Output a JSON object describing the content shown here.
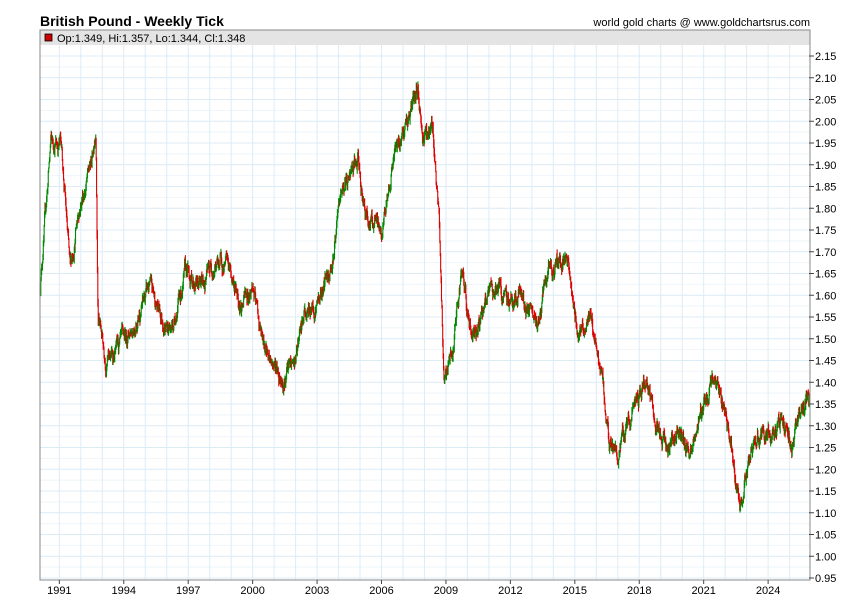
{
  "header": {
    "title": "British Pound - Weekly Tick",
    "source": "world gold charts @ www.goldchartsrus.com"
  },
  "legend": {
    "text": "Op:1.349, Hi:1.357, Lo:1.344, Cl:1.348",
    "swatch_color": "#cc0000"
  },
  "colors": {
    "up": "#008800",
    "down": "#dd0000",
    "grid": "#dcecf7",
    "legend_bg": "#e4e4e4"
  },
  "chart_data": {
    "type": "candlestick",
    "title": "British Pound - Weekly Tick",
    "xlabel": "",
    "ylabel": "",
    "xlim": [
      1990.1,
      2025.95
    ],
    "ylim": [
      0.95,
      2.17
    ],
    "yticks": [
      "0.95",
      "1.00",
      "1.05",
      "1.10",
      "1.15",
      "1.20",
      "1.25",
      "1.30",
      "1.35",
      "1.40",
      "1.45",
      "1.50",
      "1.55",
      "1.60",
      "1.65",
      "1.70",
      "1.75",
      "1.80",
      "1.85",
      "1.90",
      "1.95",
      "2.00",
      "2.05",
      "2.10",
      "2.15"
    ],
    "xticks": [
      "1991",
      "1994",
      "1997",
      "2000",
      "2003",
      "2006",
      "2009",
      "2012",
      "2015",
      "2018",
      "2021",
      "2024"
    ],
    "grid": true,
    "approx_close_path": [
      [
        1990.1,
        1.62
      ],
      [
        1990.6,
        1.95
      ],
      [
        1991.1,
        1.95
      ],
      [
        1991.5,
        1.65
      ],
      [
        1991.9,
        1.8
      ],
      [
        1992.5,
        1.9
      ],
      [
        1992.7,
        2.0
      ],
      [
        1992.8,
        1.55
      ],
      [
        1993.2,
        1.45
      ],
      [
        1993.9,
        1.48
      ],
      [
        1994.6,
        1.55
      ],
      [
        1995.2,
        1.62
      ],
      [
        1995.75,
        1.55
      ],
      [
        1996.2,
        1.52
      ],
      [
        1996.9,
        1.65
      ],
      [
        1997.6,
        1.62
      ],
      [
        1998.1,
        1.67
      ],
      [
        1998.8,
        1.67
      ],
      [
        1999.5,
        1.58
      ],
      [
        2000.0,
        1.62
      ],
      [
        2000.5,
        1.48
      ],
      [
        2000.9,
        1.45
      ],
      [
        2001.4,
        1.41
      ],
      [
        2002.0,
        1.45
      ],
      [
        2002.4,
        1.55
      ],
      [
        2003.0,
        1.58
      ],
      [
        2003.7,
        1.68
      ],
      [
        2004.2,
        1.85
      ],
      [
        2004.9,
        1.9
      ],
      [
        2005.3,
        1.78
      ],
      [
        2006.0,
        1.74
      ],
      [
        2006.5,
        1.9
      ],
      [
        2007.0,
        1.98
      ],
      [
        2007.7,
        2.07
      ],
      [
        2007.9,
        1.97
      ],
      [
        2008.4,
        1.98
      ],
      [
        2008.7,
        1.75
      ],
      [
        2008.9,
        1.42
      ],
      [
        2009.3,
        1.45
      ],
      [
        2009.7,
        1.65
      ],
      [
        2010.2,
        1.5
      ],
      [
        2010.7,
        1.57
      ],
      [
        2011.4,
        1.62
      ],
      [
        2011.8,
        1.58
      ],
      [
        2012.5,
        1.6
      ],
      [
        2013.2,
        1.52
      ],
      [
        2013.8,
        1.65
      ],
      [
        2014.6,
        1.7
      ],
      [
        2015.1,
        1.52
      ],
      [
        2015.7,
        1.55
      ],
      [
        2016.3,
        1.4
      ],
      [
        2016.6,
        1.25
      ],
      [
        2017.1,
        1.24
      ],
      [
        2017.6,
        1.32
      ],
      [
        2018.3,
        1.4
      ],
      [
        2018.8,
        1.29
      ],
      [
        2019.5,
        1.25
      ],
      [
        2019.8,
        1.3
      ],
      [
        2020.3,
        1.23
      ],
      [
        2020.7,
        1.3
      ],
      [
        2021.3,
        1.4
      ],
      [
        2021.9,
        1.35
      ],
      [
        2022.3,
        1.25
      ],
      [
        2022.7,
        1.1
      ],
      [
        2023.0,
        1.2
      ],
      [
        2023.5,
        1.27
      ],
      [
        2024.2,
        1.27
      ],
      [
        2024.6,
        1.32
      ],
      [
        2025.1,
        1.25
      ],
      [
        2025.6,
        1.35
      ],
      [
        2025.95,
        1.348
      ]
    ],
    "last_bar": {
      "open": 1.349,
      "high": 1.357,
      "low": 1.344,
      "close": 1.348
    }
  }
}
